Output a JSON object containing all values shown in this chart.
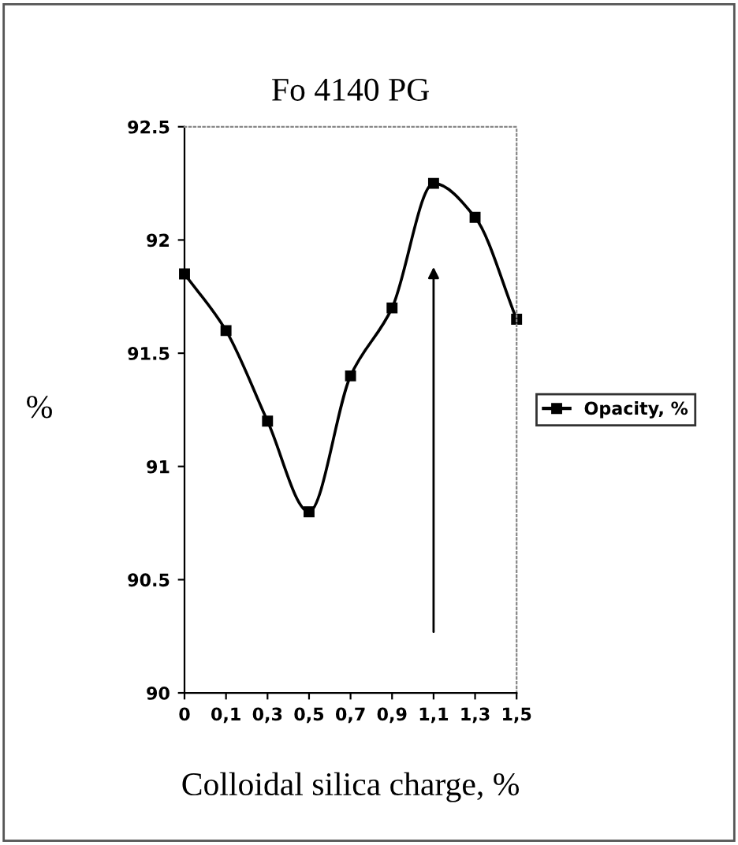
{
  "chart_data": {
    "type": "line",
    "title": "Fo 4140 PG",
    "xlabel": "Colloidal silica charge, %",
    "ylabel": "%",
    "categories": [
      "0",
      "0,1",
      "0,3",
      "0,5",
      "0,7",
      "0,9",
      "1,1",
      "1,3",
      "1,5"
    ],
    "series": [
      {
        "name": "Opacity, %",
        "color": "#000000",
        "values": [
          91.85,
          91.6,
          91.2,
          90.8,
          91.4,
          91.7,
          92.25,
          92.1,
          91.65
        ]
      }
    ],
    "ylim": [
      90,
      92.5
    ],
    "yticks": [
      90,
      90.5,
      91,
      91.5,
      92,
      92.5
    ],
    "grid": false,
    "legend": "right",
    "marker": "square",
    "line_style": "solid"
  }
}
